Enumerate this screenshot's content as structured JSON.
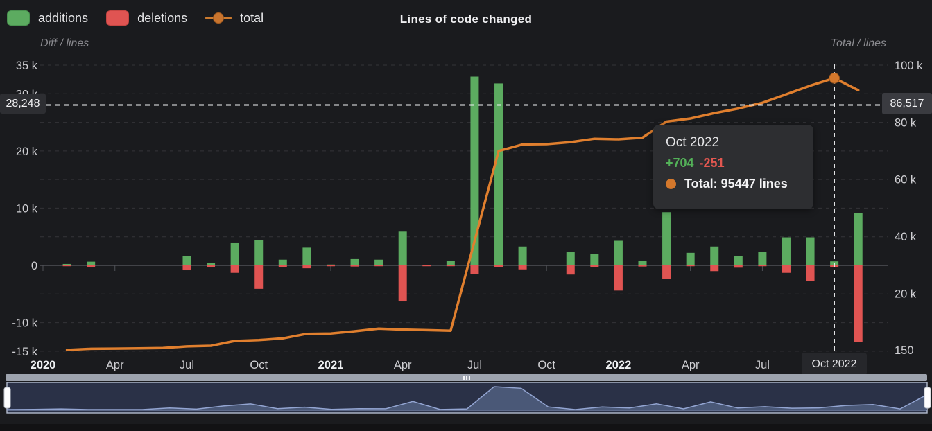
{
  "title": "Lines of code changed",
  "legend": {
    "items": [
      {
        "label": "additions",
        "color": "#5cab60"
      },
      {
        "label": "deletions",
        "color": "#e05452"
      },
      {
        "label": "total",
        "color": "#cb7a2f"
      }
    ]
  },
  "axes": {
    "left_title": "Diff / lines",
    "right_title": "Total / lines",
    "left_ticks": [
      {
        "label": "35 k",
        "value": 35000
      },
      {
        "label": "30 k",
        "value": 30000
      },
      {
        "label": "20 k",
        "value": 20000
      },
      {
        "label": "10 k",
        "value": 10000
      },
      {
        "label": "0",
        "value": 0
      },
      {
        "label": "-10 k",
        "value": -10000
      },
      {
        "label": "-15 k",
        "value": -15000
      }
    ],
    "right_ticks": [
      {
        "label": "100 k",
        "value": 100000
      },
      {
        "label": "80 k",
        "value": 80000
      },
      {
        "label": "60 k",
        "value": 60000
      },
      {
        "label": "40 k",
        "value": 40000
      },
      {
        "label": "20 k",
        "value": 20000
      },
      {
        "label": "150",
        "value": 150
      }
    ],
    "x_ticks": [
      {
        "label": "2020",
        "index": 0,
        "bold": true
      },
      {
        "label": "Apr",
        "index": 3,
        "bold": false
      },
      {
        "label": "Jul",
        "index": 6,
        "bold": false
      },
      {
        "label": "Oct",
        "index": 9,
        "bold": false
      },
      {
        "label": "2021",
        "index": 12,
        "bold": true
      },
      {
        "label": "Apr",
        "index": 15,
        "bold": false
      },
      {
        "label": "Jul",
        "index": 18,
        "bold": false
      },
      {
        "label": "Oct",
        "index": 21,
        "bold": false
      },
      {
        "label": "2022",
        "index": 24,
        "bold": true
      },
      {
        "label": "Apr",
        "index": 27,
        "bold": false
      },
      {
        "label": "Jul",
        "index": 30,
        "bold": false
      }
    ]
  },
  "chart_data": {
    "type": "bar+line",
    "x": [
      "Jan 2020",
      "Feb 2020",
      "Mar 2020",
      "Apr 2020",
      "May 2020",
      "Jun 2020",
      "Jul 2020",
      "Aug 2020",
      "Sep 2020",
      "Oct 2020",
      "Nov 2020",
      "Dec 2020",
      "Jan 2021",
      "Feb 2021",
      "Mar 2021",
      "Apr 2021",
      "May 2021",
      "Jun 2021",
      "Jul 2021",
      "Aug 2021",
      "Sep 2021",
      "Oct 2021",
      "Nov 2021",
      "Dec 2021",
      "Jan 2022",
      "Feb 2022",
      "Mar 2022",
      "Apr 2022",
      "May 2022",
      "Jun 2022",
      "Jul 2022",
      "Aug 2022",
      "Sep 2022",
      "Oct 2022",
      "Nov 2022"
    ],
    "series": [
      {
        "name": "additions",
        "type": "bar",
        "color": "#5cab60",
        "values": [
          0,
          250,
          650,
          0,
          0,
          0,
          1600,
          400,
          4000,
          4400,
          1000,
          3100,
          150,
          1100,
          1000,
          5900,
          80,
          850,
          33000,
          31800,
          3300,
          0,
          2300,
          2000,
          4300,
          850,
          9300,
          2200,
          3300,
          1600,
          2400,
          4900,
          4900,
          704,
          9200
        ]
      },
      {
        "name": "deletions",
        "type": "bar",
        "color": "#e05452",
        "values": [
          0,
          30,
          250,
          0,
          0,
          0,
          850,
          250,
          1300,
          4100,
          350,
          500,
          150,
          200,
          150,
          6300,
          60,
          100,
          1500,
          300,
          700,
          0,
          1600,
          250,
          4400,
          200,
          2300,
          150,
          1000,
          400,
          150,
          1300,
          2700,
          251,
          13400
        ]
      },
      {
        "name": "total",
        "type": "line",
        "color": "#e07f2e",
        "values": [
          null,
          150,
          550,
          600,
          700,
          800,
          1400,
          1600,
          3300,
          3600,
          4200,
          5800,
          5900,
          6700,
          7600,
          7300,
          7100,
          6900,
          38400,
          69900,
          72200,
          72300,
          73000,
          74200,
          74000,
          74600,
          80200,
          81300,
          83200,
          84800,
          86800,
          89800,
          92800,
          95447,
          91200
        ]
      }
    ],
    "left_axis_range": [
      -15000,
      35000
    ],
    "right_axis_range": [
      150,
      100000
    ],
    "grid": "dashed horizontal, every 5k",
    "legend_position": "top-left",
    "highlighted_point": {
      "x": "Oct 2022",
      "index": 33,
      "total": 95447
    }
  },
  "crosshair": {
    "left_label": "28,248",
    "right_label": "86,517",
    "x_label": "Oct 2022",
    "x_index": 33,
    "y_value_left_axis": 28248,
    "y_value_right_axis": 86517
  },
  "tooltip": {
    "title": "Oct 2022",
    "additions": "+704",
    "deletions": "-251",
    "total": "Total: 95447 lines"
  },
  "colors": {
    "background": "#1a1b1e",
    "additions": "#5cab60",
    "deletions": "#e05452",
    "total_line": "#e07f2e",
    "navigator_fill": "#4a5877",
    "navigator_bg": "#2a3147"
  }
}
